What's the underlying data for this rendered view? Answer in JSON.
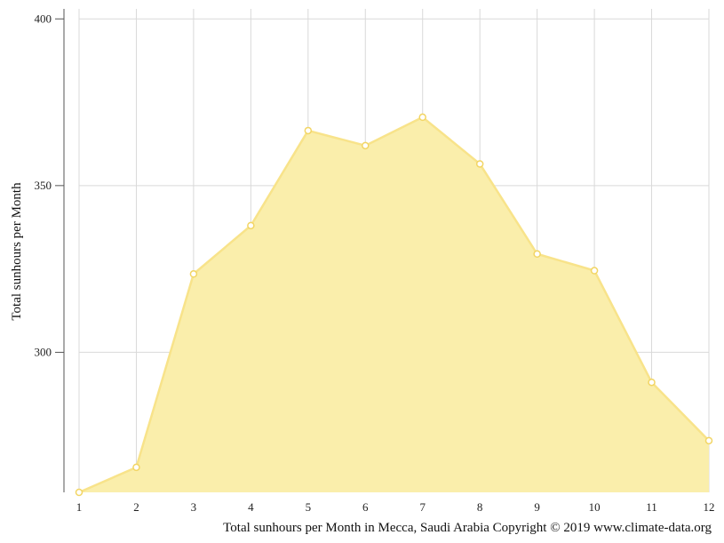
{
  "chart_data": {
    "type": "area",
    "title": "",
    "xlabel": "",
    "ylabel": "Total sunhours per Month",
    "caption": "Total sunhours per Month in Mecca, Saudi Arabia Copyright © 2019 www.climate-data.org",
    "x": [
      1,
      2,
      3,
      4,
      5,
      6,
      7,
      8,
      9,
      10,
      11,
      12
    ],
    "x_tick_labels": [
      "1",
      "2",
      "3",
      "4",
      "5",
      "6",
      "7",
      "8",
      "9",
      "10",
      "11",
      "12"
    ],
    "series": [
      {
        "values": [
          258,
          265.5,
          323.5,
          338,
          366.5,
          362,
          370.5,
          356.5,
          329.5,
          324.5,
          291,
          273.5
        ]
      }
    ],
    "y_ticks": [
      300,
      350,
      400
    ],
    "y_tick_labels": [
      "300",
      "350",
      "400"
    ],
    "ylim": [
      258,
      403
    ],
    "xlim": [
      1,
      12
    ],
    "grid": true,
    "legend": "none",
    "colors": {
      "area_fill": "#faeeab",
      "area_line": "#f8e38a",
      "marker_fill": "#ffffff",
      "marker_stroke": "#f2d564",
      "grid": "#d9d9d9",
      "axis": "#555555"
    }
  }
}
